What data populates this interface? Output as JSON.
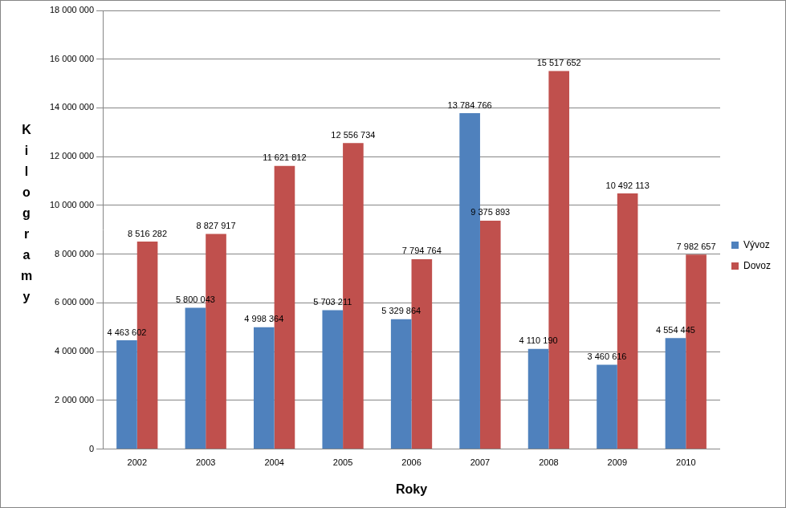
{
  "chart_data": {
    "type": "bar",
    "categories": [
      "2002",
      "2003",
      "2004",
      "2005",
      "2006",
      "2007",
      "2008",
      "2009",
      "2010"
    ],
    "series": [
      {
        "name": "Vývoz",
        "color": "#4F81BD",
        "values": [
          4463602,
          5800043,
          4998364,
          5703211,
          5329864,
          13784766,
          4110190,
          3460616,
          4554445
        ],
        "value_labels": [
          "4 463 602",
          "5 800 043",
          "4 998 364",
          "5 703 211",
          "5 329 864",
          "13 784 766",
          "4 110 190",
          "3 460 616",
          "4 554 445"
        ]
      },
      {
        "name": "Dovoz",
        "color": "#C0504D",
        "values": [
          8516282,
          8827917,
          11621812,
          12556734,
          7794764,
          9375893,
          15517652,
          10492113,
          7982657
        ],
        "value_labels": [
          "8 516 282",
          "8 827 917",
          "11 621 812",
          "12 556 734",
          "7 794 764",
          "9 375 893",
          "15 517 652",
          "10 492 113",
          "7 982 657"
        ]
      }
    ],
    "x_label": "Roky",
    "y_label": "Kilogramy",
    "ylim": [
      0,
      18000000
    ],
    "yticks": [
      0,
      {
        "value": 2000000,
        "label": "2 000 000"
      },
      {
        "value": 4000000,
        "label": "4 000 000"
      },
      {
        "value": 6000000,
        "label": "6 000 000"
      },
      {
        "value": 8000000,
        "label": "8 000 000"
      },
      {
        "value": 10000000,
        "label": "10 000 000"
      },
      {
        "value": 12000000,
        "label": "12 000 000"
      },
      {
        "value": 14000000,
        "label": "14 000 000"
      },
      {
        "value": 16000000,
        "label": "16 000 000"
      },
      {
        "value": 18000000,
        "label": "18 000 000"
      }
    ],
    "grid": true,
    "legend": "right",
    "data_labels": true
  }
}
